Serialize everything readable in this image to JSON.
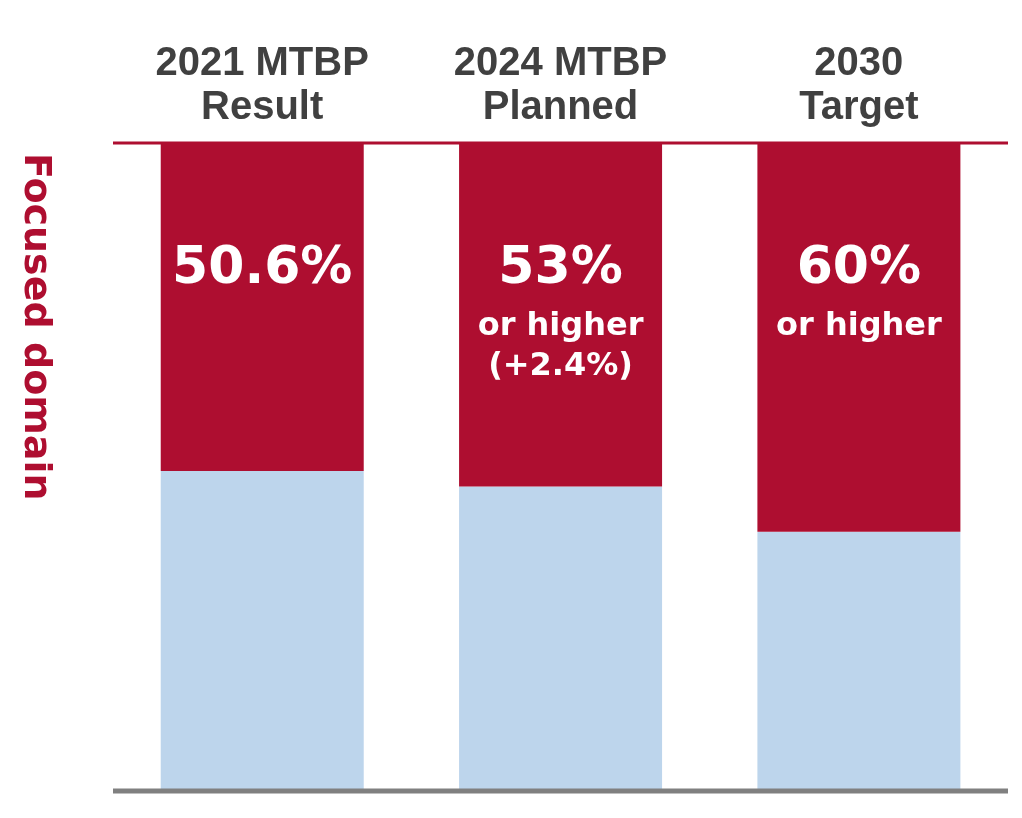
{
  "chart_data": {
    "type": "bar",
    "stacked": true,
    "ylabel": "Focused domain",
    "categories": [
      "2021 MTBP Result",
      "2024 MTBP Planned",
      "2030 Target"
    ],
    "series": [
      {
        "color": "#bdd5ec",
        "values": [
          49.4,
          47,
          40
        ]
      },
      {
        "color": "#ae0e30",
        "values": [
          50.6,
          53,
          60
        ],
        "value_labels": [
          "50.6%",
          "53% or higher (+2.4%)",
          "60% or higher"
        ]
      }
    ],
    "ylim": [
      0,
      100
    ]
  }
}
